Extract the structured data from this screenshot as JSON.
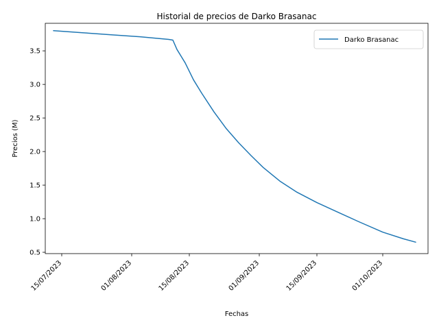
{
  "chart_data": {
    "type": "line",
    "title": "Historial de precios de Darko Brasanac",
    "xlabel": "Fechas",
    "ylabel": "Precios (M)",
    "x_tick_labels": [
      "15/07/2023",
      "01/08/2023",
      "15/08/2023",
      "01/09/2023",
      "15/09/2023",
      "01/10/2023"
    ],
    "x_ticks": [
      "2023-07-15",
      "2023-08-01",
      "2023-08-15",
      "2023-09-01",
      "2023-09-15",
      "2023-10-01"
    ],
    "xlim": [
      "2023-07-11",
      "2023-10-12"
    ],
    "y_ticks": [
      0.5,
      1.0,
      1.5,
      2.0,
      2.5,
      3.0,
      3.5
    ],
    "y_tick_labels": [
      "0.5",
      "1.0",
      "1.5",
      "2.0",
      "2.5",
      "3.0",
      "3.5"
    ],
    "ylim": [
      0.48,
      3.91
    ],
    "grid": false,
    "legend_position": "top-right",
    "series": [
      {
        "name": "Darko Brasanac",
        "color": "#1f77b4",
        "x": [
          "2023-07-13",
          "2023-07-20",
          "2023-07-27",
          "2023-08-03",
          "2023-08-10",
          "2023-08-11",
          "2023-08-12",
          "2023-08-13",
          "2023-08-14",
          "2023-08-16",
          "2023-08-18",
          "2023-08-21",
          "2023-08-24",
          "2023-08-27",
          "2023-08-30",
          "2023-09-02",
          "2023-09-06",
          "2023-09-10",
          "2023-09-15",
          "2023-09-20",
          "2023-09-25",
          "2023-10-01",
          "2023-10-06",
          "2023-10-09"
        ],
        "y": [
          3.8,
          3.77,
          3.74,
          3.71,
          3.67,
          3.66,
          3.52,
          3.42,
          3.32,
          3.07,
          2.87,
          2.59,
          2.34,
          2.13,
          1.94,
          1.76,
          1.56,
          1.4,
          1.24,
          1.1,
          0.96,
          0.8,
          0.7,
          0.65
        ]
      }
    ]
  }
}
